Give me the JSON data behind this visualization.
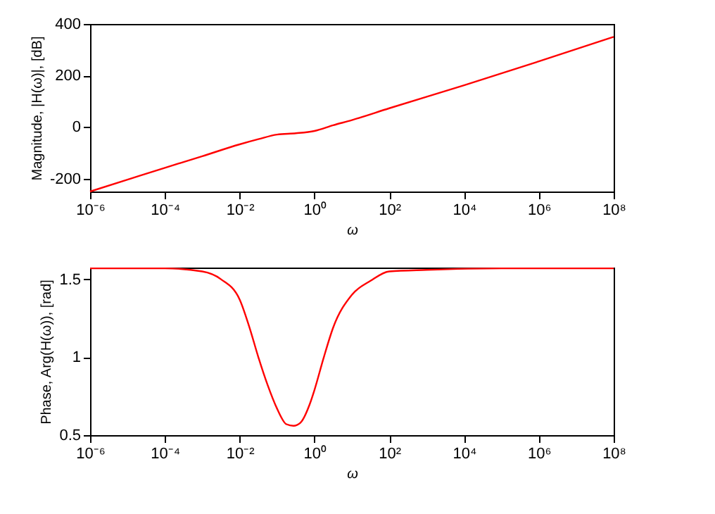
{
  "chart_data": [
    {
      "type": "line",
      "xlabel": "ω",
      "ylabel": "Magnitude, |H(ω)|, [dB]",
      "log": "x",
      "x": [
        1e-06,
        1e-05,
        0.0001,
        0.001,
        0.01,
        0.0316,
        0.1,
        0.316,
        1,
        3.16,
        10,
        100,
        10000.0,
        1000000.0,
        100000000.0
      ],
      "series": [
        {
          "color": "#ff0000",
          "values": [
            -250,
            -204,
            -158,
            -113,
            -67,
            -47,
            -29,
            -24,
            -15,
            7,
            27,
            73,
            162,
            255,
            350
          ]
        }
      ],
      "xlim": [
        1e-06,
        100000000.0
      ],
      "xticks": [
        {
          "value": 1e-06,
          "label": "10⁻⁶"
        },
        {
          "value": 0.0001,
          "label": "10⁻⁴"
        },
        {
          "value": 0.01,
          "label": "10⁻²"
        },
        {
          "value": 1,
          "label": "10⁰"
        },
        {
          "value": 100,
          "label": "10²"
        },
        {
          "value": 10000.0,
          "label": "10⁴"
        },
        {
          "value": 1000000.0,
          "label": "10⁶"
        },
        {
          "value": 100000000.0,
          "label": "10⁸"
        }
      ],
      "ylim": [
        -250,
        400
      ],
      "yticks": [
        -200,
        0,
        200,
        400
      ]
    },
    {
      "type": "line",
      "xlabel": "ω",
      "ylabel": "Phase, Arg(H(ω)), [rad]",
      "log": "x",
      "x": [
        1e-06,
        0.0001,
        0.001,
        0.00316,
        0.01,
        0.0178,
        0.0316,
        0.0562,
        0.1,
        0.178,
        0.275,
        0.422,
        0.75,
        1,
        1.78,
        3.16,
        10,
        31.6,
        100,
        1000,
        100000.0,
        100000000.0
      ],
      "series": [
        {
          "color": "#ff0000",
          "values": [
            1.57,
            1.57,
            1.55,
            1.5,
            1.37,
            1.2,
            1.0,
            0.82,
            0.67,
            0.57,
            0.56,
            0.58,
            0.7,
            0.79,
            1.0,
            1.19,
            1.4,
            1.49,
            1.55,
            1.56,
            1.57,
            1.57
          ]
        }
      ],
      "xlim": [
        1e-06,
        100000000.0
      ],
      "xticks": [
        {
          "value": 1e-06,
          "label": "10⁻⁶"
        },
        {
          "value": 0.0001,
          "label": "10⁻⁴"
        },
        {
          "value": 0.01,
          "label": "10⁻²"
        },
        {
          "value": 1,
          "label": "10⁰"
        },
        {
          "value": 100,
          "label": "10²"
        },
        {
          "value": 10000.0,
          "label": "10⁴"
        },
        {
          "value": 1000000.0,
          "label": "10⁶"
        },
        {
          "value": 100000000.0,
          "label": "10⁸"
        }
      ],
      "ylim": [
        0.5,
        1.575
      ],
      "yticks": [
        0.5,
        1,
        1.5
      ]
    }
  ]
}
